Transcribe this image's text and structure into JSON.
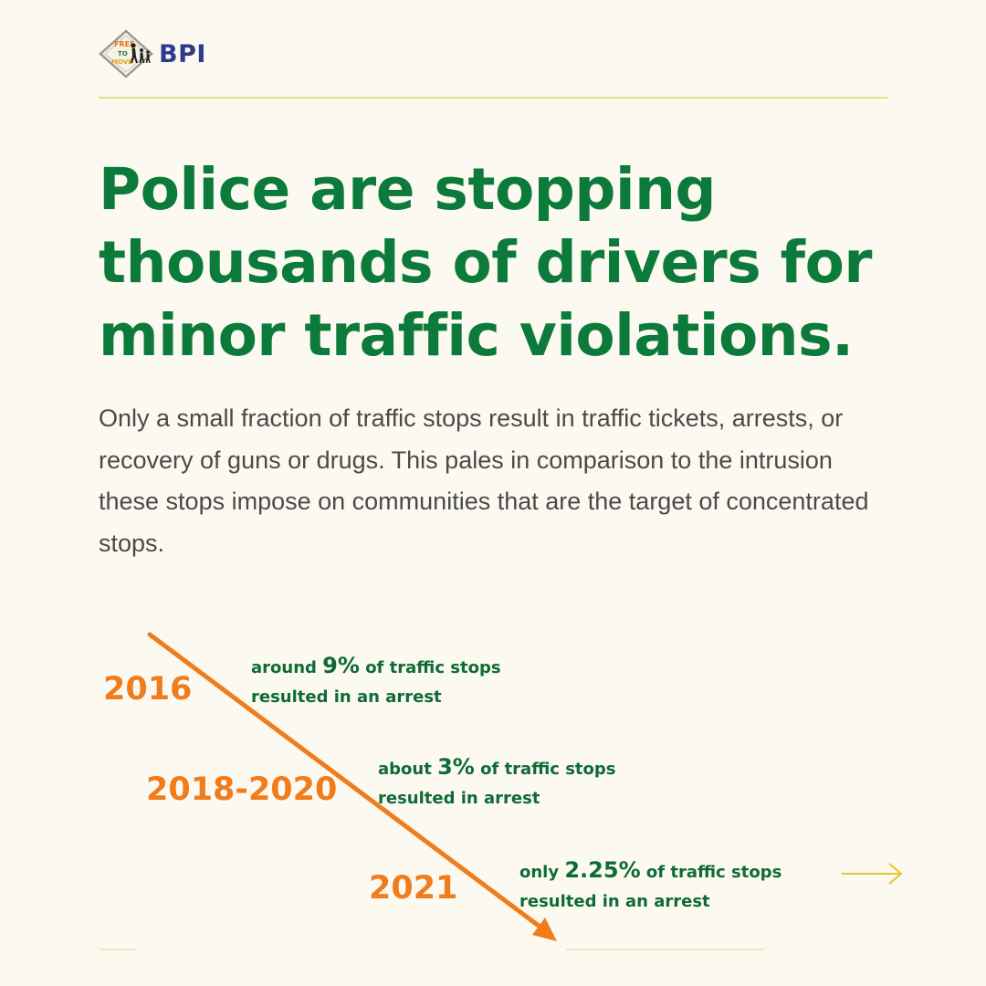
{
  "brand": {
    "sign_lines": [
      "FREE",
      "TO",
      "MOVE"
    ],
    "name": "BPI"
  },
  "headline": "Police are stopping thousands of drivers for minor traffic violations.",
  "body": "Only a small fraction of traffic stops result in traffic tickets, arrests, or recovery of guns or drugs. This pales in comparison to the intrusion these stops impose on communities that are the target of concentrated stops.",
  "timeline": [
    {
      "year": "2016",
      "prefix": "around ",
      "percent": "9%",
      "line1_rest": " of traffic stops",
      "line2": "resulted in an arrest"
    },
    {
      "year": "2018-2020",
      "prefix": "about ",
      "percent": "3%",
      "line1_rest": " of traffic stops",
      "line2": "resulted in arrest"
    },
    {
      "year": "2021",
      "prefix": "only ",
      "percent": "2.25%",
      "line1_rest": " of traffic stops",
      "line2": "resulted in an arrest"
    }
  ],
  "icons": {
    "next": "arrow-right-icon",
    "trend": "trend-arrow-icon",
    "logo": "free-to-move-sign-icon"
  },
  "colors": {
    "background": "#fcf9f1",
    "headline": "#0c7a3a",
    "body": "#4a4a48",
    "year": "#f07c1c",
    "stat": "#0f6b35",
    "arrow": "#f07c1c",
    "rule": "#dde48a",
    "brand": "#2e3a8f"
  }
}
